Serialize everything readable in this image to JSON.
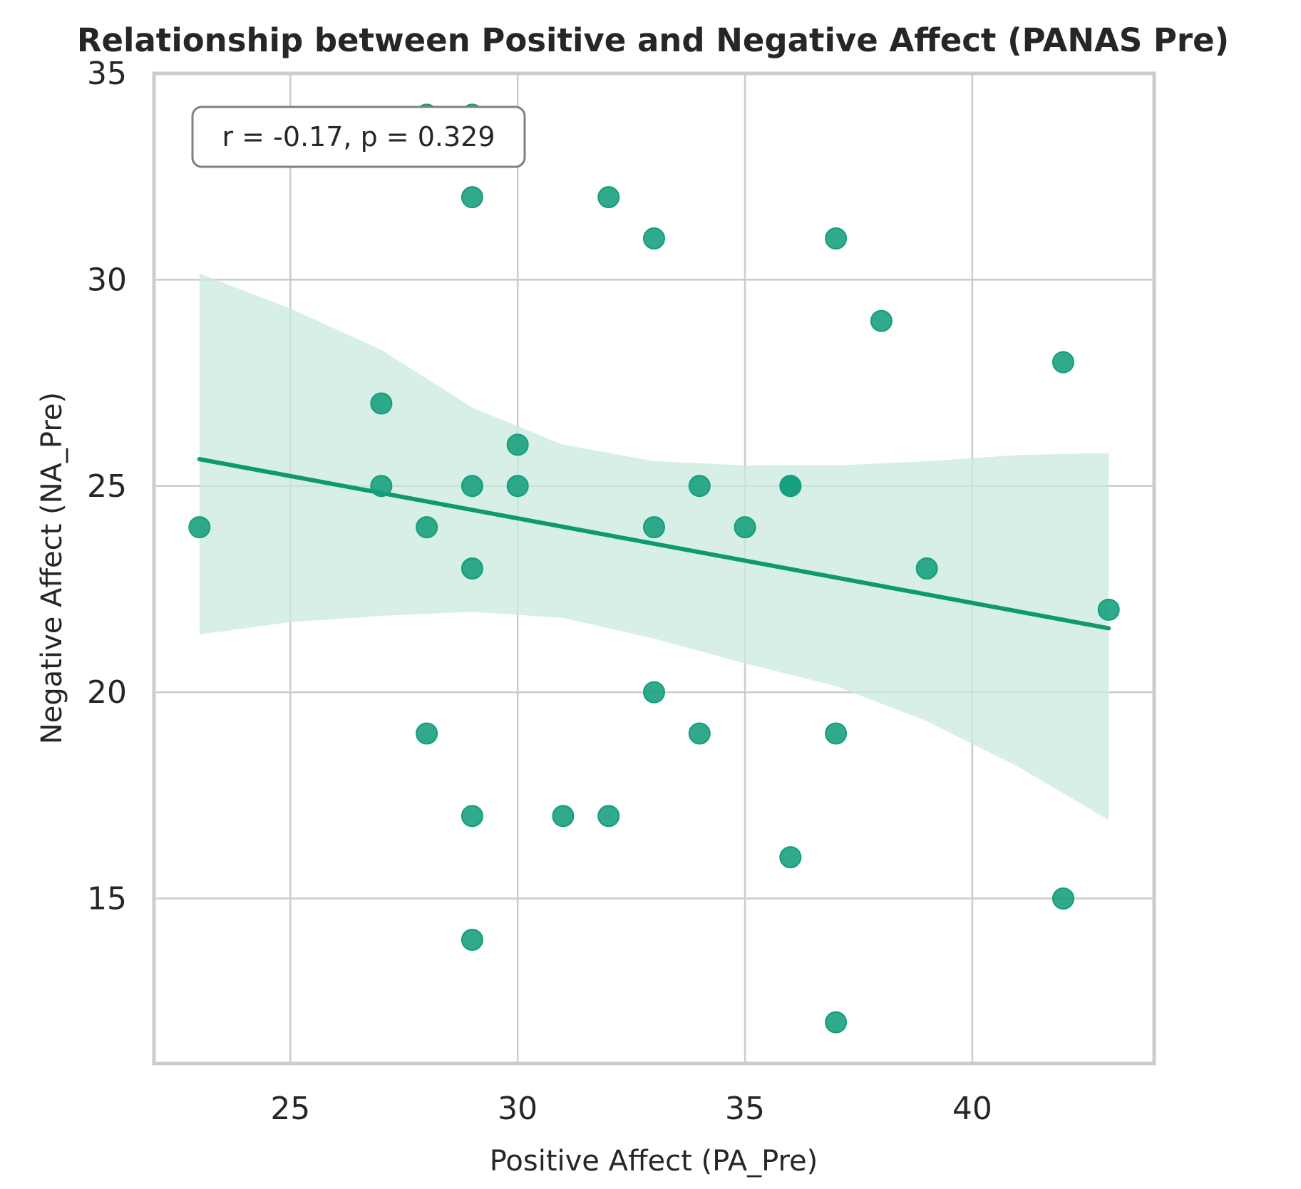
{
  "chart_data": {
    "type": "scatter",
    "title": "Relationship between Positive and Negative Affect (PANAS Pre)",
    "xlabel": "Positive Affect (PA_Pre)",
    "ylabel": "Negative Affect (NA_Pre)",
    "xlim": [
      22,
      44
    ],
    "ylim": [
      11,
      35
    ],
    "xticks": [
      25,
      30,
      35,
      40
    ],
    "yticks": [
      15,
      20,
      25,
      30,
      35
    ],
    "grid": true,
    "annotation": "r = -0.17, p = 0.329",
    "annotation_placement": "top-left",
    "colors": {
      "points": "#149e7c",
      "fit_line": "#0e9a6e",
      "ci_band": "#cbeadf"
    },
    "series": [
      {
        "points": [
          {
            "x": 23,
            "y": 24
          },
          {
            "x": 27,
            "y": 27
          },
          {
            "x": 27,
            "y": 25
          },
          {
            "x": 28,
            "y": 34
          },
          {
            "x": 28,
            "y": 24
          },
          {
            "x": 28,
            "y": 19
          },
          {
            "x": 29,
            "y": 34
          },
          {
            "x": 29,
            "y": 32
          },
          {
            "x": 29,
            "y": 25
          },
          {
            "x": 29,
            "y": 23
          },
          {
            "x": 29,
            "y": 17
          },
          {
            "x": 29,
            "y": 14
          },
          {
            "x": 30,
            "y": 26
          },
          {
            "x": 30,
            "y": 25
          },
          {
            "x": 31,
            "y": 17
          },
          {
            "x": 32,
            "y": 32
          },
          {
            "x": 32,
            "y": 17
          },
          {
            "x": 33,
            "y": 31
          },
          {
            "x": 33,
            "y": 24
          },
          {
            "x": 33,
            "y": 20
          },
          {
            "x": 34,
            "y": 25
          },
          {
            "x": 34,
            "y": 19
          },
          {
            "x": 35,
            "y": 24
          },
          {
            "x": 36,
            "y": 25
          },
          {
            "x": 36,
            "y": 25
          },
          {
            "x": 36,
            "y": 16
          },
          {
            "x": 37,
            "y": 31
          },
          {
            "x": 37,
            "y": 19
          },
          {
            "x": 37,
            "y": 12
          },
          {
            "x": 38,
            "y": 29
          },
          {
            "x": 39,
            "y": 23
          },
          {
            "x": 42,
            "y": 28
          },
          {
            "x": 42,
            "y": 15
          },
          {
            "x": 43,
            "y": 22
          }
        ]
      }
    ],
    "regression": {
      "line": [
        {
          "x": 23,
          "y": 25.65
        },
        {
          "x": 43,
          "y": 21.55
        }
      ],
      "ci_upper": [
        {
          "x": 23,
          "y": 30.15
        },
        {
          "x": 25,
          "y": 29.3
        },
        {
          "x": 27,
          "y": 28.3
        },
        {
          "x": 29,
          "y": 26.9
        },
        {
          "x": 31,
          "y": 26.0
        },
        {
          "x": 33,
          "y": 25.6
        },
        {
          "x": 35,
          "y": 25.5
        },
        {
          "x": 37,
          "y": 25.5
        },
        {
          "x": 39,
          "y": 25.6
        },
        {
          "x": 41,
          "y": 25.75
        },
        {
          "x": 43,
          "y": 25.8
        }
      ],
      "ci_lower": [
        {
          "x": 23,
          "y": 21.4
        },
        {
          "x": 25,
          "y": 21.7
        },
        {
          "x": 27,
          "y": 21.85
        },
        {
          "x": 29,
          "y": 21.95
        },
        {
          "x": 31,
          "y": 21.8
        },
        {
          "x": 33,
          "y": 21.3
        },
        {
          "x": 35,
          "y": 20.7
        },
        {
          "x": 37,
          "y": 20.15
        },
        {
          "x": 39,
          "y": 19.3
        },
        {
          "x": 41,
          "y": 18.2
        },
        {
          "x": 43,
          "y": 16.9
        }
      ]
    }
  }
}
